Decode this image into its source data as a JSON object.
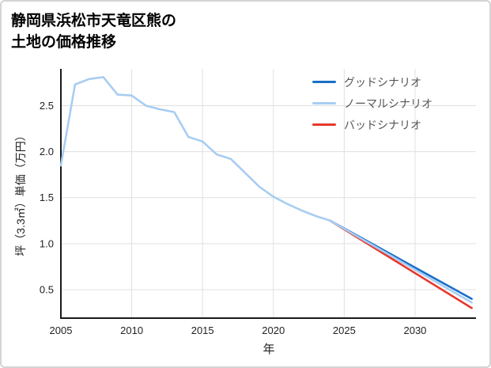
{
  "page": {
    "title_line1": "静岡県浜松市天竜区熊の",
    "title_line2": "土地の価格推移"
  },
  "chart_data": {
    "type": "line",
    "title": "静岡県浜松市天竜区熊の土地の価格推移",
    "xlabel": "年",
    "ylabel": "坪（3.3㎡）単価（万円）",
    "xlim": [
      2005,
      2034.3
    ],
    "ylim": [
      0.19,
      2.9
    ],
    "xticks": [
      2005,
      2010,
      2015,
      2020,
      2025,
      2030
    ],
    "yticks": [
      0.5,
      1.0,
      1.5,
      2.0,
      2.5
    ],
    "grid": true,
    "grid_color": "#e0e0e0",
    "axis_color": "#1a1a1a",
    "legend_position": "upper right",
    "series": [
      {
        "name": "グッドシナリオ",
        "color": "#1b6fc8",
        "x": [
          2024,
          2034
        ],
        "y": [
          1.25,
          0.4
        ]
      },
      {
        "name": "ノーマルシナリオ",
        "color": "#a8cdf2",
        "x": [
          2005,
          2006,
          2007,
          2008,
          2009,
          2010,
          2011,
          2012,
          2013,
          2014,
          2015,
          2016,
          2017,
          2018,
          2019,
          2020,
          2021,
          2022,
          2023,
          2024,
          2034
        ],
        "y": [
          1.85,
          2.73,
          2.79,
          2.81,
          2.62,
          2.61,
          2.5,
          2.46,
          2.43,
          2.16,
          2.11,
          1.97,
          1.92,
          1.77,
          1.62,
          1.51,
          1.43,
          1.36,
          1.3,
          1.25,
          0.36
        ]
      },
      {
        "name": "バッドシナリオ",
        "color": "#e8382d",
        "x": [
          2024,
          2034
        ],
        "y": [
          1.25,
          0.3
        ]
      }
    ],
    "draw_order": [
      0,
      2,
      1
    ]
  }
}
